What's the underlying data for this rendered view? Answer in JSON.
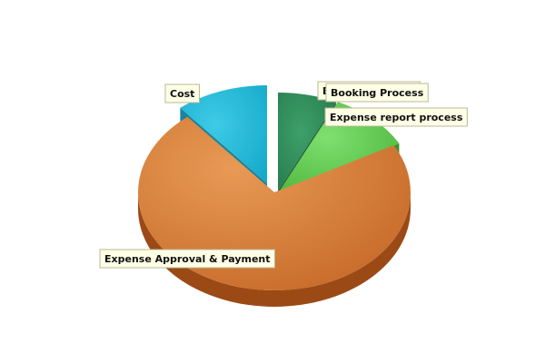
{
  "chart_data": {
    "type": "pie",
    "style": "3d-exploded",
    "title": "",
    "slices": [
      {
        "name": "Booking Process",
        "value": 7,
        "color": "#2e8b57",
        "dark": "#1d5e39"
      },
      {
        "name": "Expense report process",
        "value": 10,
        "color": "#5cc84a",
        "dark": "#2f8d22"
      },
      {
        "name": "Expense Approval & Payment",
        "value": 72,
        "color": "#d9823d",
        "dark": "#9b4a16"
      },
      {
        "name": "Cost",
        "value": 11,
        "color": "#1fb8d8",
        "dark": "#0f7e98"
      }
    ],
    "overlapping_label_text": "Booking Process"
  }
}
